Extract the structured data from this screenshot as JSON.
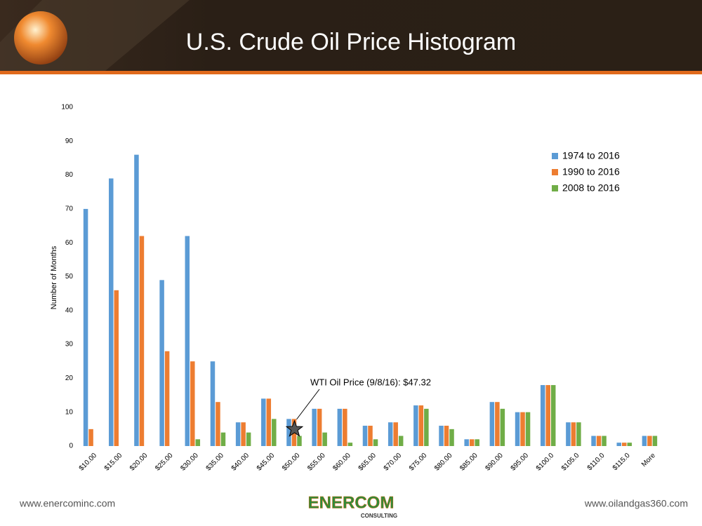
{
  "chart_data": {
    "type": "bar",
    "title": "U.S. Crude Oil Price Histogram",
    "y_label": "Number of Months",
    "categories": [
      "$10.00",
      "$15.00",
      "$20.00",
      "$25.00",
      "$30.00",
      "$35.00",
      "$40.00",
      "$45.00",
      "$50.00",
      "$55.00",
      "$60.00",
      "$65.00",
      "$70.00",
      "$75.00",
      "$80.00",
      "$85.00",
      "$90.00",
      "$95.00",
      "$100.0",
      "$105.0",
      "$110.0",
      "$115.0",
      "More"
    ],
    "series": [
      {
        "name": "1974 to 2016",
        "color": "#5b9bd5",
        "values": [
          70,
          79,
          86,
          49,
          62,
          25,
          7,
          14,
          8,
          11,
          11,
          6,
          7,
          12,
          6,
          2,
          13,
          10,
          18,
          7,
          3,
          1,
          3
        ]
      },
      {
        "name": "1990 to 2016",
        "color": "#ed7d31",
        "values": [
          5,
          46,
          62,
          28,
          25,
          13,
          7,
          14,
          8,
          11,
          11,
          6,
          7,
          12,
          6,
          2,
          13,
          10,
          18,
          7,
          3,
          1,
          3
        ]
      },
      {
        "name": "2008 to 2016",
        "color": "#70ad47",
        "values": [
          0,
          0,
          0,
          0,
          2,
          4,
          4,
          8,
          3,
          4,
          1,
          2,
          3,
          11,
          5,
          2,
          11,
          10,
          18,
          7,
          3,
          1,
          3
        ]
      }
    ],
    "ylim": [
      0,
      100
    ],
    "yticks": [
      0,
      10,
      20,
      30,
      40,
      50,
      60,
      70,
      80,
      90,
      100
    ],
    "grid": false,
    "legend": "upper right",
    "annotation": "WTI Oil Price (9/8/16): $47.32"
  },
  "footer": {
    "left": "www.enercominc.com",
    "right": "www.oilandgas360.com",
    "logo": "ENERCOM",
    "logo_sub": "CONSULTING"
  }
}
